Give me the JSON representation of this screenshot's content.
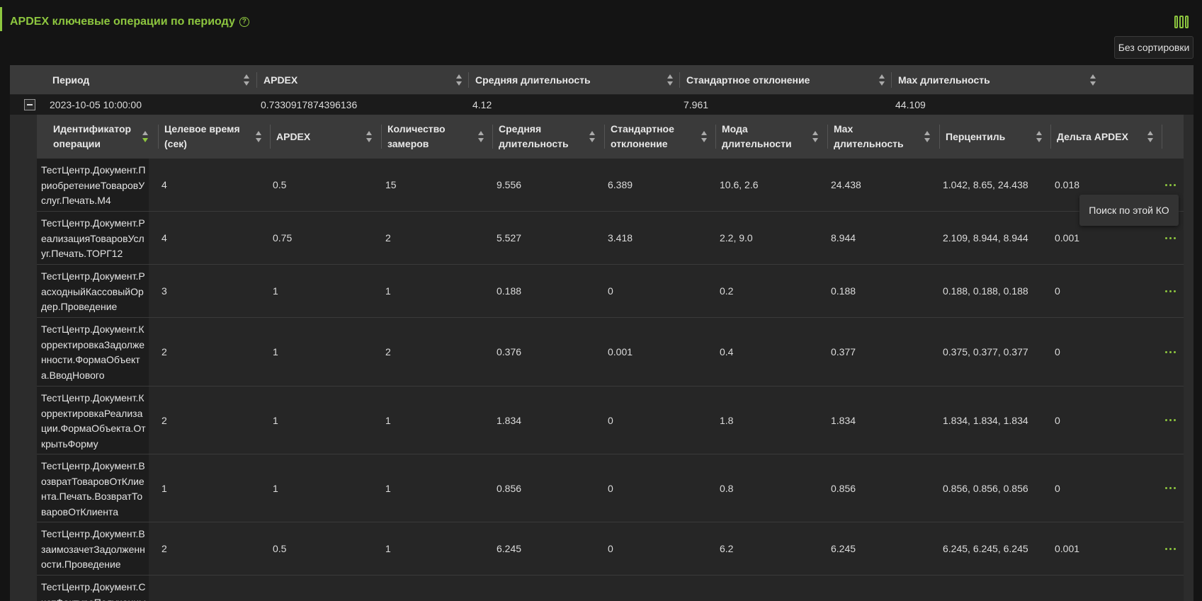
{
  "panel": {
    "title": "APDEX ключевые операции по периоду",
    "help_icon": "?"
  },
  "sort_button": "Без сортировки",
  "outer_table": {
    "headers": [
      "Период",
      "APDEX",
      "Средняя длительность",
      "Стандартное отклонение",
      "Max длительность"
    ],
    "row": [
      "2023-10-05 10:00:00",
      "0.7330917874396136",
      "4.12",
      "7.961",
      "44.109"
    ]
  },
  "inner_table": {
    "headers": [
      "Идентификатор операции",
      "Целевое время (сек)",
      "APDEX",
      "Количество замеров",
      "Средняя длительность",
      "Стандартное отклонение",
      "Мода длительности",
      "Max длительность",
      "Перцентиль",
      "Дельта APDEX"
    ],
    "rows": [
      [
        "ТестЦентр.Документ.ПриобретениеТоваровУслуг.Печать.М4",
        "4",
        "0.5",
        "15",
        "9.556",
        "6.389",
        "10.6, 2.6",
        "24.438",
        "1.042, 8.65, 24.438",
        "0.018"
      ],
      [
        "ТестЦентр.Документ.РеализацияТоваровУслуг.Печать.ТОРГ12",
        "4",
        "0.75",
        "2",
        "5.527",
        "3.418",
        "2.2, 9.0",
        "8.944",
        "2.109, 8.944, 8.944",
        "0.001"
      ],
      [
        "ТестЦентр.Документ.РасходныйКассовыйОрдер.Проведение",
        "3",
        "1",
        "1",
        "0.188",
        "0",
        "0.2",
        "0.188",
        "0.188, 0.188, 0.188",
        "0"
      ],
      [
        "ТестЦентр.Документ.КорректировкаЗадолженности.ФормаОбъекта.ВводНового",
        "2",
        "1",
        "2",
        "0.376",
        "0.001",
        "0.4",
        "0.377",
        "0.375, 0.377, 0.377",
        "0"
      ],
      [
        "ТестЦентр.Документ.КорректировкаРеализации.ФормаОбъекта.ОткрытьФорму",
        "2",
        "1",
        "1",
        "1.834",
        "0",
        "1.8",
        "1.834",
        "1.834, 1.834, 1.834",
        "0"
      ],
      [
        "ТестЦентр.Документ.ВозвратТоваровОтКлиента.Печать.ВозвратТоваровОтКлиента",
        "1",
        "1",
        "1",
        "0.856",
        "0",
        "0.8",
        "0.856",
        "0.856, 0.856, 0.856",
        "0"
      ],
      [
        "ТестЦентр.Документ.ВзаимозачетЗадолженности.Проведение",
        "2",
        "0.5",
        "1",
        "6.245",
        "0",
        "6.2",
        "6.245",
        "6.245, 6.245, 6.245",
        "0.001"
      ],
      [
        "ТестЦентр.Документ.СчетФактураПолученный",
        "",
        "",
        "",
        "",
        "",
        "",
        "",
        "",
        ""
      ]
    ]
  },
  "tooltip": "Поиск по этой КО",
  "colors": {
    "accent": "#8dc63f"
  }
}
